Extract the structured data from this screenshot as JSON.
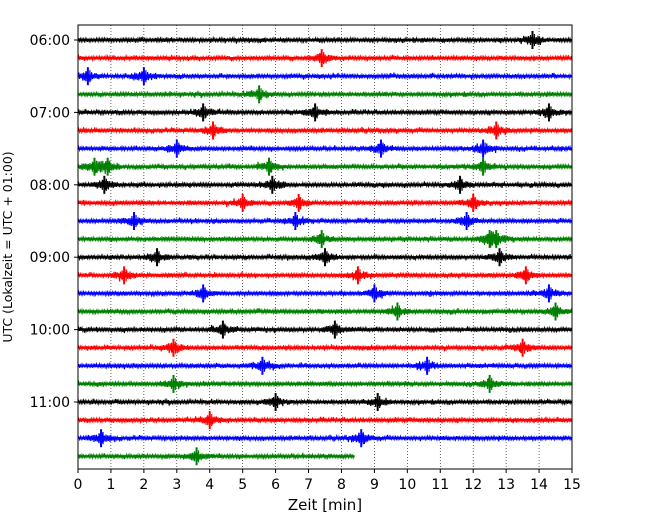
{
  "chart_data": {
    "type": "line",
    "title": "",
    "xlabel": "Zeit  [min]",
    "ylabel": "UTC (Lokalzeit = UTC + 01:00)",
    "xlim": [
      0,
      15
    ],
    "x_ticks": [
      0,
      1,
      2,
      3,
      4,
      5,
      6,
      7,
      8,
      9,
      10,
      11,
      12,
      13,
      14,
      15
    ],
    "x_grid": "dotted vertical lines at every minute",
    "y_ticks": [
      "06:00",
      "07:00",
      "08:00",
      "09:00",
      "10:00",
      "11:00"
    ],
    "y_tick_offsets_min": [
      0,
      60,
      120,
      180,
      240,
      300
    ],
    "row_interval_min": 15,
    "color_cycle": [
      "#000000",
      "#ff0000",
      "#0000ff",
      "#008000"
    ],
    "traces": [
      {
        "start": "06:00",
        "color": "#000000",
        "spikes": [
          13.8
        ],
        "length_min": 15
      },
      {
        "start": "06:15",
        "color": "#ff0000",
        "spikes": [
          7.4
        ],
        "length_min": 15
      },
      {
        "start": "06:30",
        "color": "#0000ff",
        "spikes": [
          0.3,
          2.0
        ],
        "length_min": 15
      },
      {
        "start": "06:45",
        "color": "#008000",
        "spikes": [
          5.5
        ],
        "length_min": 15
      },
      {
        "start": "07:00",
        "color": "#000000",
        "spikes": [
          3.8,
          7.2,
          14.3
        ],
        "length_min": 15
      },
      {
        "start": "07:15",
        "color": "#ff0000",
        "spikes": [
          4.1,
          12.7
        ],
        "length_min": 15
      },
      {
        "start": "07:30",
        "color": "#0000ff",
        "spikes": [
          3.0,
          9.2,
          12.3
        ],
        "length_min": 15
      },
      {
        "start": "07:45",
        "color": "#008000",
        "spikes": [
          0.5,
          0.9,
          5.8,
          12.3
        ],
        "length_min": 15
      },
      {
        "start": "08:00",
        "color": "#000000",
        "spikes": [
          0.8,
          5.9,
          11.6
        ],
        "length_min": 15
      },
      {
        "start": "08:15",
        "color": "#ff0000",
        "spikes": [
          5.0,
          6.7,
          12.0
        ],
        "length_min": 15
      },
      {
        "start": "08:30",
        "color": "#0000ff",
        "spikes": [
          1.7,
          6.6,
          11.8
        ],
        "length_min": 15
      },
      {
        "start": "08:45",
        "color": "#008000",
        "spikes": [
          7.4,
          12.5,
          12.7
        ],
        "length_min": 15
      },
      {
        "start": "09:00",
        "color": "#000000",
        "spikes": [
          2.4,
          7.5,
          12.8
        ],
        "length_min": 15
      },
      {
        "start": "09:15",
        "color": "#ff0000",
        "spikes": [
          1.4,
          8.5,
          13.6
        ],
        "length_min": 15
      },
      {
        "start": "09:30",
        "color": "#0000ff",
        "spikes": [
          3.8,
          9.0,
          14.3
        ],
        "length_min": 15
      },
      {
        "start": "09:45",
        "color": "#008000",
        "spikes": [
          9.7,
          14.5
        ],
        "length_min": 15
      },
      {
        "start": "10:00",
        "color": "#000000",
        "spikes": [
          4.4,
          7.8
        ],
        "length_min": 15
      },
      {
        "start": "10:15",
        "color": "#ff0000",
        "spikes": [
          2.9,
          13.5
        ],
        "length_min": 15
      },
      {
        "start": "10:30",
        "color": "#0000ff",
        "spikes": [
          5.6,
          10.6
        ],
        "length_min": 15
      },
      {
        "start": "10:45",
        "color": "#008000",
        "spikes": [
          2.9,
          12.5
        ],
        "length_min": 15
      },
      {
        "start": "11:00",
        "color": "#000000",
        "spikes": [
          6.0,
          9.1
        ],
        "length_min": 15
      },
      {
        "start": "11:15",
        "color": "#ff0000",
        "spikes": [
          4.0
        ],
        "length_min": 15
      },
      {
        "start": "11:30",
        "color": "#0000ff",
        "spikes": [
          0.7,
          8.6
        ],
        "length_min": 15
      },
      {
        "start": "11:45",
        "color": "#008000",
        "spikes": [
          3.6
        ],
        "length_min": 8.4
      }
    ]
  }
}
